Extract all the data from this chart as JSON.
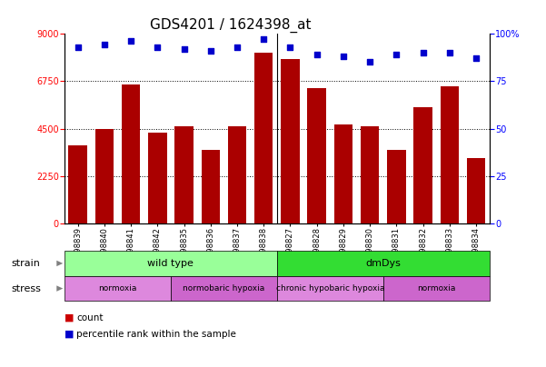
{
  "title": "GDS4201 / 1624398_at",
  "samples": [
    "GSM398839",
    "GSM398840",
    "GSM398841",
    "GSM398842",
    "GSM398835",
    "GSM398836",
    "GSM398837",
    "GSM398838",
    "GSM398827",
    "GSM398828",
    "GSM398829",
    "GSM398830",
    "GSM398831",
    "GSM398832",
    "GSM398833",
    "GSM398834"
  ],
  "counts": [
    3700,
    4500,
    6600,
    4300,
    4600,
    3500,
    4600,
    8100,
    7800,
    6400,
    4700,
    4600,
    3500,
    5500,
    6500,
    3100
  ],
  "percentiles": [
    93,
    94,
    96,
    93,
    92,
    91,
    93,
    97,
    93,
    89,
    88,
    85,
    89,
    90,
    90,
    87
  ],
  "bar_color": "#aa0000",
  "dot_color": "#0000cc",
  "ylim_left": [
    0,
    9000
  ],
  "ylim_right": [
    0,
    100
  ],
  "yticks_left": [
    0,
    2250,
    4500,
    6750,
    9000
  ],
  "yticks_right": [
    0,
    25,
    50,
    75,
    100
  ],
  "strain_groups": [
    {
      "label": "wild type",
      "start": 0,
      "end": 8,
      "color": "#99ff99"
    },
    {
      "label": "dmDys",
      "start": 8,
      "end": 16,
      "color": "#33dd33"
    }
  ],
  "stress_groups": [
    {
      "label": "normoxia",
      "start": 0,
      "end": 4,
      "color": "#dd88dd"
    },
    {
      "label": "normobaric hypoxia",
      "start": 4,
      "end": 8,
      "color": "#cc66cc"
    },
    {
      "label": "chronic hypobaric hypoxia",
      "start": 8,
      "end": 12,
      "color": "#dd88dd"
    },
    {
      "label": "normoxia",
      "start": 12,
      "end": 16,
      "color": "#cc66cc"
    }
  ],
  "legend_count_color": "#cc0000",
  "legend_dot_color": "#0000cc",
  "title_fontsize": 11,
  "tick_fontsize": 7,
  "bar_label_fontsize": 6
}
